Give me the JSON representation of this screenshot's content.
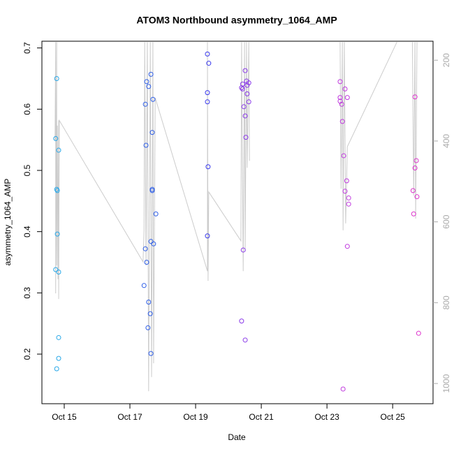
{
  "chart_data": {
    "type": "scatter",
    "title": "ATOM3 Northbound asymmetry_1064_AMP",
    "x_label": "Date",
    "y_label": "asymmetry_1064_AMP",
    "xlim": [
      14.32,
      26.23
    ],
    "xticks": [
      {
        "value": 15,
        "label": "Oct 15"
      },
      {
        "value": 17,
        "label": "Oct 17"
      },
      {
        "value": 19,
        "label": "Oct 19"
      },
      {
        "value": 21,
        "label": "Oct 21"
      },
      {
        "value": 23,
        "label": "Oct 23"
      },
      {
        "value": 25,
        "label": "Oct 25"
      }
    ],
    "ylim": [
      0.119,
      0.711
    ],
    "yticks": [
      0.2,
      0.3,
      0.4,
      0.5,
      0.6,
      0.7
    ],
    "y2lim": [
      1050,
      153
    ],
    "y2ticks": [
      200,
      400,
      600,
      800,
      1000
    ],
    "y2_color": "#aaaaaa",
    "series": [
      {
        "color": "#29a8e8",
        "x": [
          14.77,
          14.74,
          14.83,
          14.77,
          14.79,
          14.79,
          14.74,
          14.83,
          14.83,
          14.83,
          14.77
        ],
        "values": [
          0.65,
          0.552,
          0.533,
          0.469,
          0.467,
          0.396,
          0.338,
          0.334,
          0.227,
          0.193,
          0.176
        ]
      },
      {
        "color": "#3060e8",
        "x": [
          17.51,
          17.47,
          17.57,
          17.64,
          17.7,
          17.68,
          17.49,
          17.47,
          17.51,
          17.43,
          17.57,
          17.62,
          17.55,
          17.64,
          17.68,
          17.68,
          17.64,
          17.72,
          17.79
        ],
        "values": [
          0.645,
          0.608,
          0.637,
          0.657,
          0.616,
          0.562,
          0.541,
          0.372,
          0.35,
          0.312,
          0.285,
          0.266,
          0.243,
          0.201,
          0.469,
          0.467,
          0.384,
          0.38,
          0.429
        ]
      },
      {
        "color": "#3a3aee",
        "x": [
          19.36,
          19.4,
          19.36,
          19.36,
          19.38,
          19.36
        ],
        "values": [
          0.69,
          0.675,
          0.627,
          0.612,
          0.506,
          0.393
        ]
      },
      {
        "color": "#8a3ae8",
        "x": [
          20.51,
          20.43,
          20.4,
          20.43,
          20.55,
          20.62,
          20.57,
          20.57,
          20.62,
          20.47,
          20.51,
          20.53,
          20.45,
          20.4,
          20.51
        ],
        "values": [
          0.663,
          0.641,
          0.635,
          0.633,
          0.646,
          0.643,
          0.639,
          0.625,
          0.612,
          0.604,
          0.589,
          0.554,
          0.37,
          0.254,
          0.223
        ]
      },
      {
        "color": "#c03ade",
        "x": [
          23.4,
          23.4,
          23.4,
          23.45,
          23.55,
          23.62,
          23.47,
          23.51,
          23.6,
          23.55,
          23.66,
          23.66,
          23.62,
          23.49
        ],
        "values": [
          0.645,
          0.619,
          0.613,
          0.608,
          0.633,
          0.619,
          0.58,
          0.524,
          0.483,
          0.466,
          0.455,
          0.445,
          0.376,
          0.143
        ]
      },
      {
        "color": "#dd33cc",
        "x": [
          25.68,
          25.72,
          25.68,
          25.62,
          25.74,
          25.64,
          25.79
        ],
        "values": [
          0.62,
          0.516,
          0.504,
          0.467,
          0.457,
          0.429,
          0.234
        ]
      },
      {
        "type": "line",
        "axis": "y2",
        "color": "#cccccc",
        "x": [
          14.72,
          14.74,
          14.74,
          14.77,
          14.77,
          14.79,
          14.81,
          14.83,
          14.83,
          14.85,
          17.4,
          17.43,
          17.45,
          17.49,
          17.53,
          17.57,
          17.62,
          17.66,
          17.7,
          17.72,
          17.77,
          19.36,
          19.36,
          19.38,
          19.4,
          20.38,
          20.4,
          20.45,
          20.49,
          20.51,
          20.55,
          20.57,
          20.62,
          20.64,
          22.0,
          23.4,
          23.43,
          23.47,
          23.49,
          23.53,
          23.57,
          23.62,
          25.13,
          25.4,
          25.6,
          25.64,
          25.68,
          25.7,
          25.74
        ],
        "values": [
          397,
          155,
          777,
          155,
          708,
          362,
          742,
          349,
          791,
          349,
          699,
          621,
          155,
          708,
          155,
          1019,
          155,
          984,
          155,
          950,
          293,
          722,
          155,
          746,
          526,
          647,
          155,
          722,
          155,
          673,
          155,
          466,
          155,
          449,
          null,
          155,
          518,
          155,
          621,
          155,
          604,
          414,
          155,
          null,
          155,
          535,
          155,
          592,
          155
        ]
      }
    ]
  }
}
